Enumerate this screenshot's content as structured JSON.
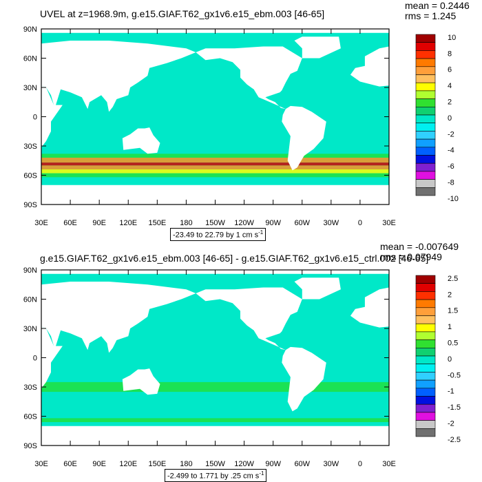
{
  "panels": [
    {
      "title": "UVEL at z=1968.9m, g.e15.GIAF.T62_gx1v6.e15_ebm.003 [46-65]",
      "mean": "mean = 0.2446",
      "rms": "rms = 1.245",
      "range_text": "-23.49 to 22.79 by 1 cm s",
      "range_unit_exp": "-1",
      "colorbar_labels": [
        "10",
        "8",
        "6",
        "4",
        "2",
        "0",
        "-2",
        "-4",
        "-6",
        "-8",
        "-10"
      ]
    },
    {
      "title": "g.e15.GIAF.T62_gx1v6.e15_ebm.003 [46-65] - g.e15.GIAF.T62_gx1v6.e15_ctrl.002 [46-65]",
      "mean": "mean = -0.007649",
      "rms": "rms = 0.07949",
      "range_text": "-2.499 to 1.771 by .25 cm s",
      "range_unit_exp": "-1",
      "colorbar_labels": [
        "2.5",
        "2",
        "1.5",
        "1",
        "0.5",
        "0",
        "-0.5",
        "-1",
        "-1.5",
        "-2",
        "-2.5"
      ]
    }
  ],
  "axes": {
    "lat_labels": [
      "90N",
      "60N",
      "30N",
      "0",
      "30S",
      "60S",
      "90S"
    ],
    "lon_labels": [
      "30E",
      "60E",
      "90E",
      "120E",
      "150E",
      "180",
      "150W",
      "120W",
      "90W",
      "60W",
      "30W",
      "0",
      "30E"
    ]
  },
  "colors": {
    "land": "#ffffff",
    "ocean_base": "#00e8c8",
    "ocean_light": "#40f0a0",
    "green": "#20e040",
    "strong_pos": "#d40000",
    "orange": "#ff9020",
    "yellow": "#ffff00",
    "blue": "#0050ff",
    "colorbar": [
      "#a00000",
      "#e00000",
      "#ff3000",
      "#ff7a00",
      "#ff9f3a",
      "#ffc060",
      "#ffff00",
      "#b0ff30",
      "#30e030",
      "#10d070",
      "#00e8c8",
      "#00f0f0",
      "#30d0ff",
      "#10a0ff",
      "#0060ff",
      "#0010e0",
      "#8020d0",
      "#e010e0",
      "#c8c8c8",
      "#707070"
    ]
  }
}
